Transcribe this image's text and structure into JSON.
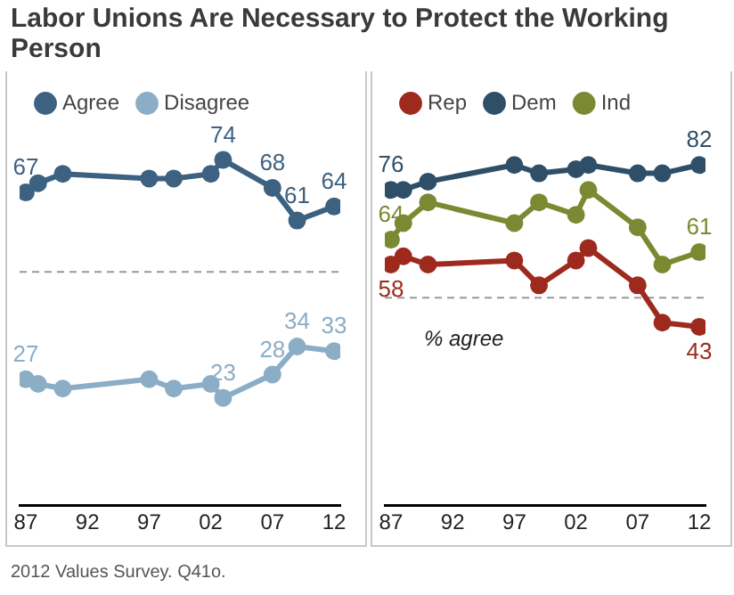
{
  "chart_data": [
    {
      "type": "line",
      "title": "Labor Unions Are Necessary to Protect the Working Person",
      "x": [
        1987,
        1988,
        1990,
        1997,
        1999,
        2002,
        2003,
        2007,
        2009,
        2012
      ],
      "series": [
        {
          "name": "Agree",
          "color": "#3d6180",
          "values": [
            67,
            69,
            71,
            70,
            70,
            71,
            74,
            68,
            61,
            64
          ],
          "value_labels": [
            "67",
            null,
            null,
            null,
            null,
            null,
            "74",
            "68",
            "61",
            "64"
          ]
        },
        {
          "name": "Disagree",
          "color": "#8badc6",
          "values": [
            27,
            26,
            25,
            27,
            25,
            26,
            23,
            28,
            34,
            33
          ],
          "value_labels": [
            "27",
            null,
            null,
            null,
            null,
            null,
            "23",
            "28",
            "34",
            "33"
          ]
        }
      ],
      "xlim": [
        1986.5,
        2012.5
      ],
      "xticks": [
        {
          "value": 1987,
          "label": "87"
        },
        {
          "value": 1992,
          "label": "92"
        },
        {
          "value": 1997,
          "label": "97"
        },
        {
          "value": 2002,
          "label": "02"
        },
        {
          "value": 2007,
          "label": "07"
        },
        {
          "value": 2012,
          "label": "12"
        }
      ],
      "ref_lines": [
        {
          "axis": "y",
          "value": 50,
          "color": "#999999",
          "line_style": "dashed"
        }
      ],
      "legend": "top",
      "marker": "circle",
      "tick_labels": "x",
      "grid": false
    },
    {
      "type": "line",
      "x": [
        1987,
        1988,
        1990,
        1997,
        1999,
        2002,
        2003,
        2007,
        2009,
        2012
      ],
      "series": [
        {
          "name": "Rep",
          "color": "#9e2a1e",
          "values": [
            58,
            60,
            58,
            59,
            53,
            59,
            62,
            53,
            44,
            43
          ],
          "value_labels": [
            "58",
            null,
            null,
            null,
            null,
            null,
            null,
            null,
            null,
            "43"
          ]
        },
        {
          "name": "Dem",
          "color": "#2f4f68",
          "values": [
            76,
            76,
            78,
            82,
            80,
            81,
            82,
            80,
            80,
            82
          ],
          "value_labels": [
            "76",
            null,
            null,
            null,
            null,
            null,
            null,
            null,
            null,
            "82"
          ]
        },
        {
          "name": "Ind",
          "color": "#7b8a32",
          "values": [
            64,
            68,
            73,
            68,
            73,
            70,
            76,
            67,
            58,
            61
          ],
          "value_labels": [
            "64",
            null,
            null,
            null,
            null,
            null,
            null,
            null,
            null,
            "61"
          ]
        }
      ],
      "xlim": [
        1986.5,
        2012.5
      ],
      "xticks": [
        {
          "value": 1987,
          "label": "87"
        },
        {
          "value": 1992,
          "label": "92"
        },
        {
          "value": 1997,
          "label": "97"
        },
        {
          "value": 2002,
          "label": "02"
        },
        {
          "value": 2007,
          "label": "07"
        },
        {
          "value": 2012,
          "label": "12"
        }
      ],
      "ref_lines": [
        {
          "axis": "y",
          "value": 50,
          "color": "#999999",
          "line_style": "dashed"
        }
      ],
      "annotations": [
        "% agree",
        "2012 Values Survey. Q41o."
      ],
      "legend": "top",
      "marker": "circle",
      "tick_labels": "x",
      "grid": false
    }
  ]
}
